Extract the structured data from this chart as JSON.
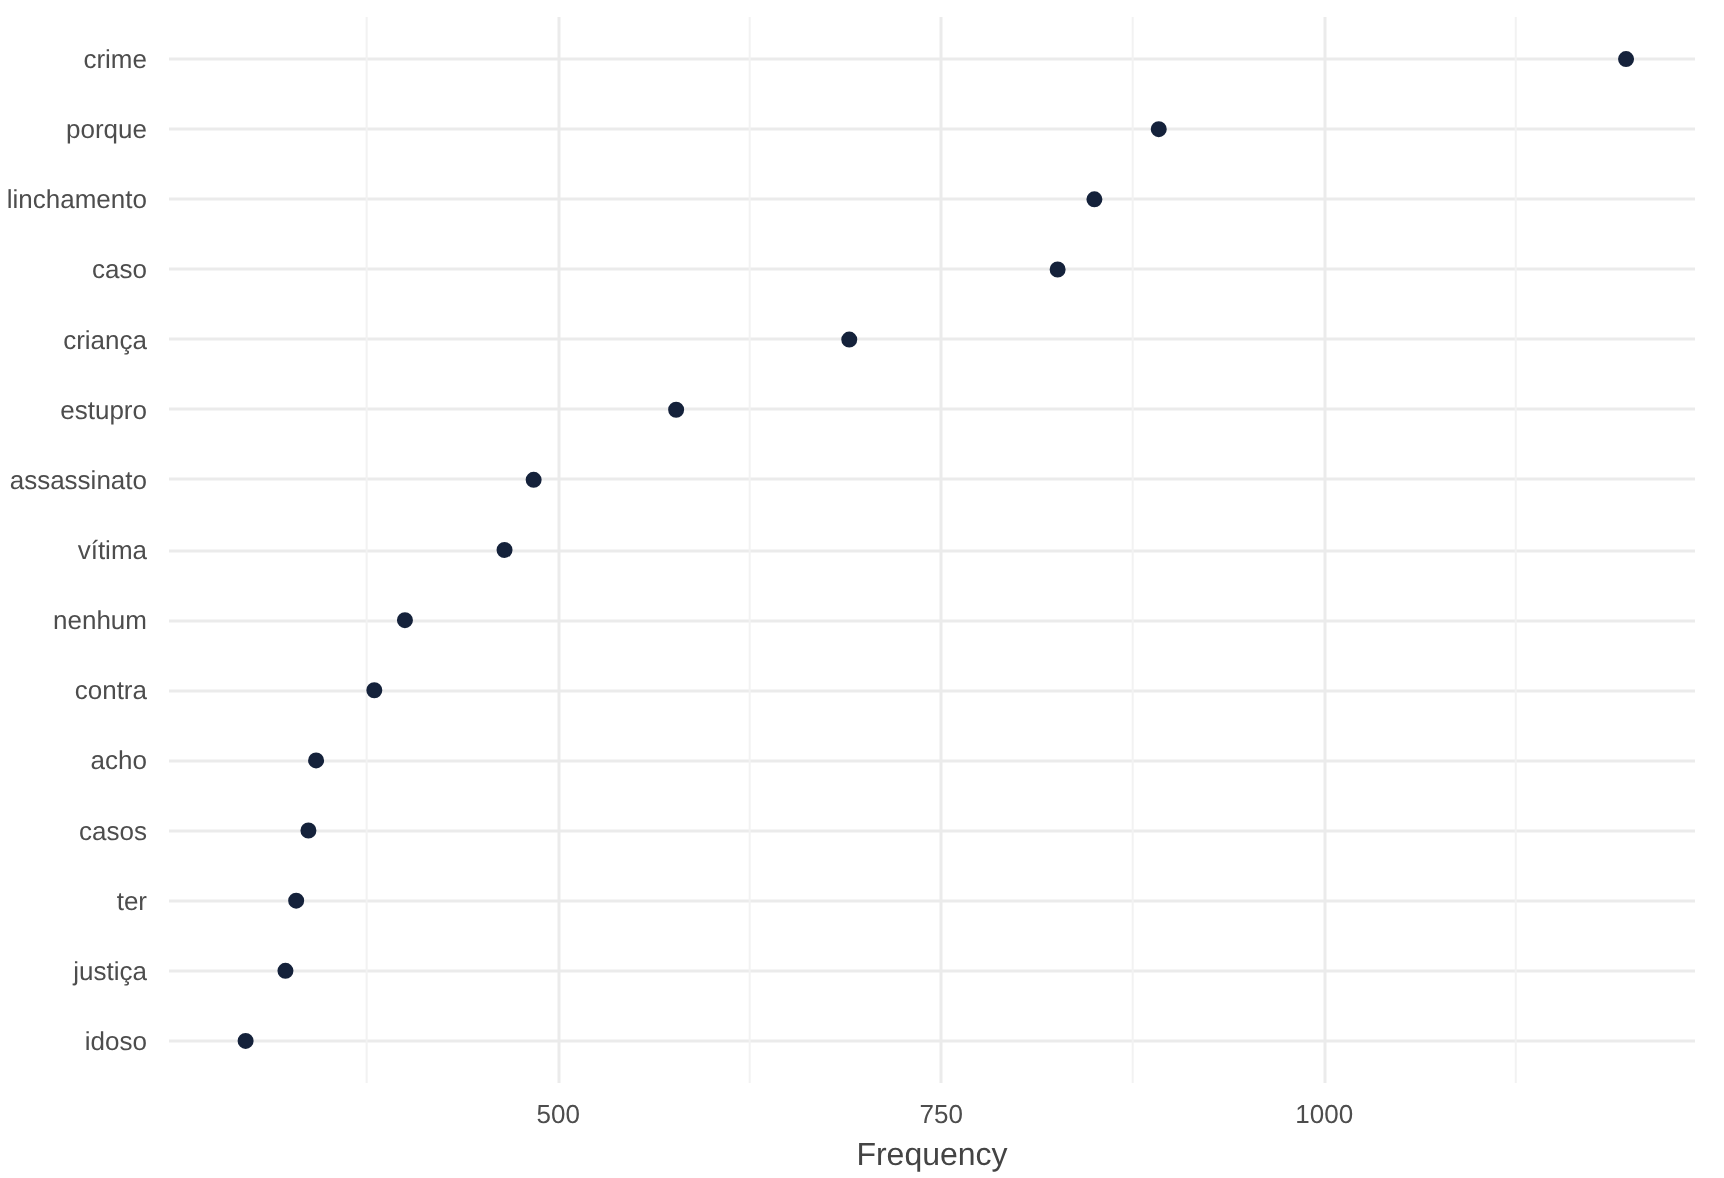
{
  "chart_data": {
    "type": "scatter",
    "xlabel": "Frequency",
    "categories": [
      "crime",
      "porque",
      "linchamento",
      "caso",
      "criança",
      "estupro",
      "assassinato",
      "vítima",
      "nenhum",
      "contra",
      "acho",
      "casos",
      "ter",
      "justiça",
      "idoso"
    ],
    "orientation": "horizontal",
    "series": [
      {
        "color": "#15223b",
        "values": [
          1197,
          892,
          850,
          826,
          690,
          577,
          484,
          465,
          400,
          380,
          342,
          337,
          329,
          322,
          296
        ]
      }
    ],
    "xlim": [
      246,
      1242
    ],
    "xticks": [
      {
        "value": 375,
        "label": null
      },
      500,
      {
        "value": 625,
        "label": null
      },
      750,
      {
        "value": 875,
        "label": null
      },
      1000,
      {
        "value": 1125,
        "label": null
      }
    ],
    "grid": true,
    "marker": "circle"
  }
}
